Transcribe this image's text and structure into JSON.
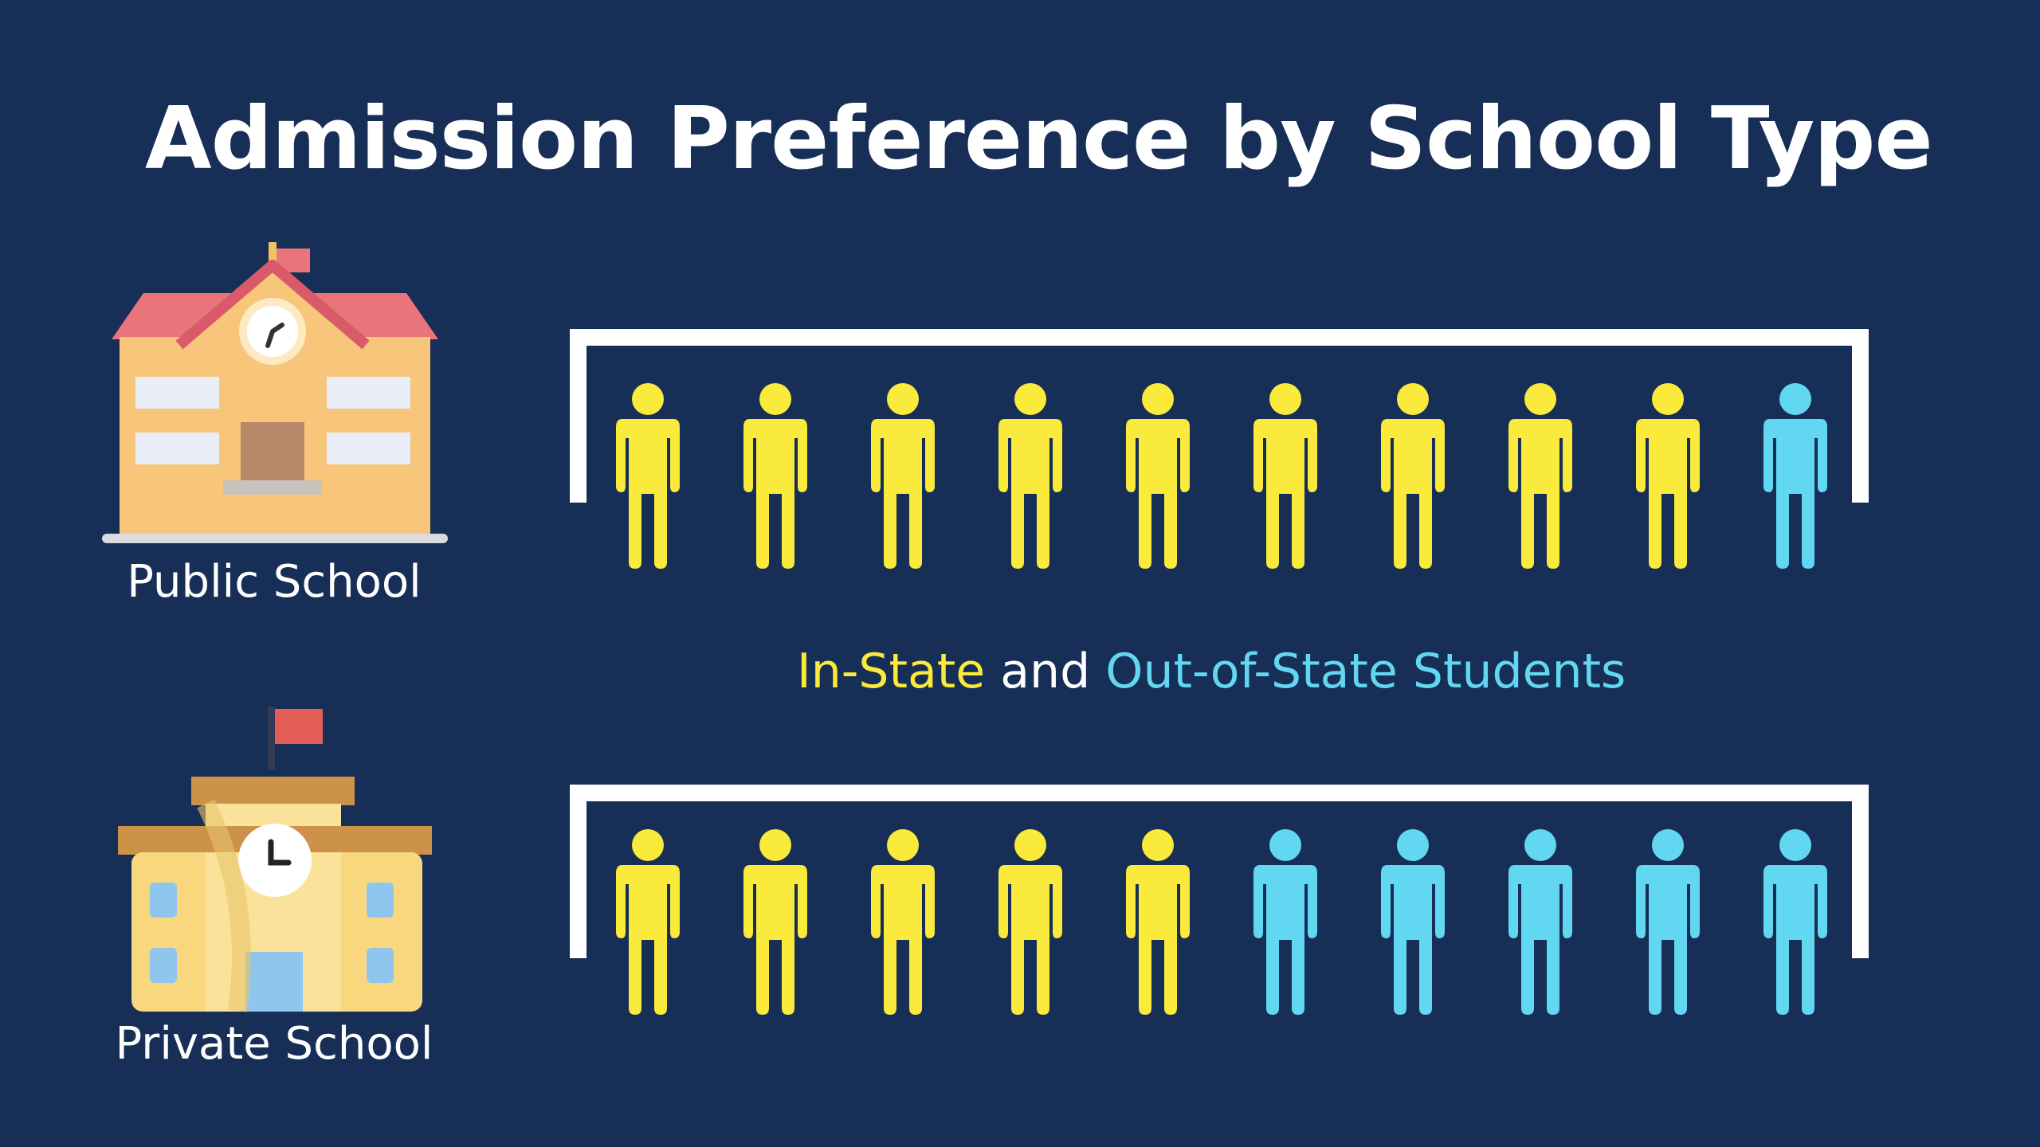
{
  "title": "Admission Preference by School Type",
  "colors": {
    "background": "#172e57",
    "in_state": "#f9ea3b",
    "out_of_state": "#62d7f2",
    "bracket": "#ffffff"
  },
  "legend": {
    "in_state": "In-State",
    "connector": " and ",
    "out_of_state": "Out-of-State Students"
  },
  "rows": [
    {
      "label": "Public School",
      "icon": "public-school-building-icon",
      "people": [
        "in",
        "in",
        "in",
        "in",
        "in",
        "in",
        "in",
        "in",
        "in",
        "out"
      ]
    },
    {
      "label": "Private School",
      "icon": "private-school-building-icon",
      "people": [
        "in",
        "in",
        "in",
        "in",
        "in",
        "out",
        "out",
        "out",
        "out",
        "out"
      ]
    }
  ]
}
